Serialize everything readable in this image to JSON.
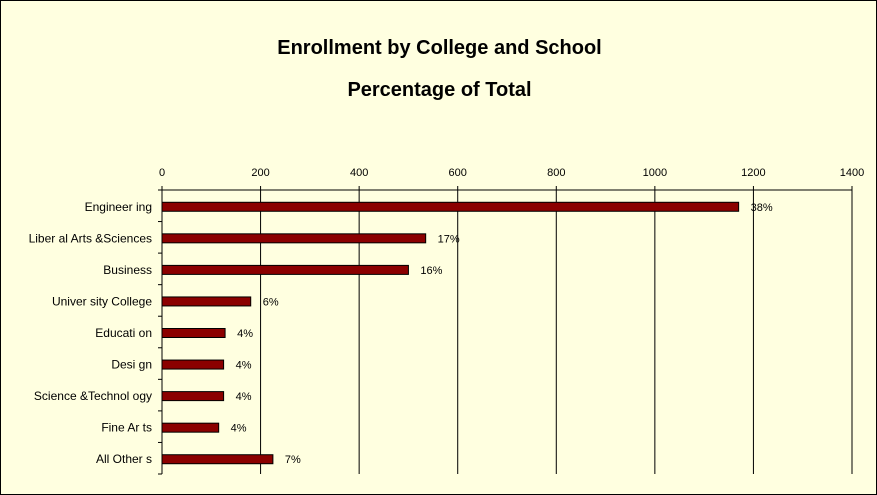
{
  "chart_data": {
    "type": "bar",
    "orientation": "horizontal",
    "title": "Enrollment by College and School",
    "subtitle": "Percentage of Total",
    "xlabel": "",
    "ylabel": "",
    "xlim": [
      0,
      1400
    ],
    "x_ticks": [
      0,
      200,
      400,
      600,
      800,
      1000,
      1200,
      1400
    ],
    "x_tick_labels": [
      "0",
      "200",
      "400",
      "600",
      "800",
      "1000",
      "1200",
      "1400"
    ],
    "x_axis_position": "top",
    "grid": "vertical",
    "legend": "none",
    "categories": [
      "Engineer ing",
      "Liber al Arts &Sciences",
      "Business",
      "Univer sity College",
      "Educati on",
      "Desi gn",
      "Science &Technol ogy",
      "Fine Ar ts",
      "All Other s"
    ],
    "values": [
      1170,
      535,
      500,
      180,
      128,
      125,
      125,
      115,
      225
    ],
    "data_labels": [
      "38%",
      "17%",
      "16%",
      "6%",
      "4%",
      "4%",
      "4%",
      "4%",
      "7%"
    ],
    "colors": {
      "bar_fill": "#8b0000",
      "bar_stroke": "#000000",
      "background": "#ffffe0",
      "grid": "#000000"
    }
  }
}
